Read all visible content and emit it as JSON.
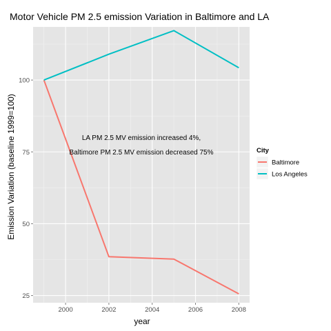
{
  "chart_data": {
    "type": "line",
    "title": "Motor Vehicle PM 2.5 emission Variation in Baltimore and LA",
    "xlabel": "year",
    "ylabel": "Emission Variation (baseline 1999=100)",
    "x": [
      1999,
      2002,
      2005,
      2008
    ],
    "xlim": [
      1998.5,
      2008.5
    ],
    "ylim": [
      22.5,
      118.5
    ],
    "x_ticks": [
      2000,
      2002,
      2004,
      2006,
      2008
    ],
    "y_ticks": [
      25,
      50,
      75,
      100
    ],
    "grid": true,
    "legend": {
      "title": "City",
      "placement": "right"
    },
    "series": [
      {
        "name": "Baltimore",
        "color": "#F8766D",
        "values": [
          100,
          38.5,
          37.7,
          25.6
        ]
      },
      {
        "name": "Los Angeles",
        "color": "#00BFC4",
        "values": [
          100,
          109,
          117.2,
          104.3
        ]
      }
    ],
    "annotations": [
      {
        "x": 2003.5,
        "y": 80,
        "text": "LA PM 2.5 MV emission increased 4%,"
      },
      {
        "x": 2003.5,
        "y": 75,
        "text": "Baltimore PM 2.5 MV emission decreased 75%"
      }
    ]
  },
  "colors": {
    "panel_background": "#E5E5E5",
    "major_grid": "#FFFFFF",
    "minor_grid": "#F2F2F2",
    "tick_text": "#4D4D4D"
  }
}
